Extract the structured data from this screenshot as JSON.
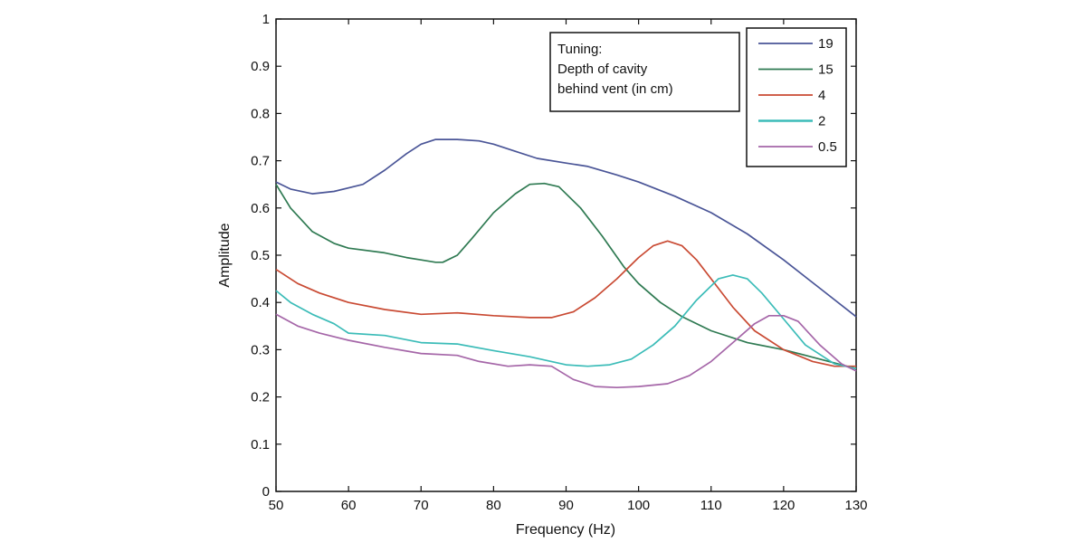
{
  "chart_data": {
    "type": "line",
    "title": "",
    "xlabel": "Frequency (Hz)",
    "ylabel": "Amplitude",
    "xlim": [
      50,
      130
    ],
    "ylim": [
      0,
      1
    ],
    "x_ticks": [
      50,
      60,
      70,
      80,
      90,
      100,
      110,
      120,
      130
    ],
    "y_ticks": [
      "0",
      "0.1",
      "0.2",
      "0.3",
      "0.4",
      "0.5",
      "0.6",
      "0.7",
      "0.8",
      "0.9",
      "1"
    ],
    "grid": false,
    "legend_placement": "top-right",
    "annotation": [
      "Tuning:",
      "Depth of cavity",
      "behind vent (in cm)"
    ],
    "series": [
      {
        "name": "19",
        "color": "#4a5597",
        "points": [
          [
            50,
            0.655
          ],
          [
            52,
            0.64
          ],
          [
            55,
            0.63
          ],
          [
            58,
            0.635
          ],
          [
            62,
            0.65
          ],
          [
            65,
            0.68
          ],
          [
            68,
            0.715
          ],
          [
            70,
            0.735
          ],
          [
            72,
            0.745
          ],
          [
            75,
            0.745
          ],
          [
            78,
            0.742
          ],
          [
            80,
            0.735
          ],
          [
            83,
            0.72
          ],
          [
            86,
            0.705
          ],
          [
            90,
            0.695
          ],
          [
            93,
            0.688
          ],
          [
            97,
            0.67
          ],
          [
            100,
            0.655
          ],
          [
            105,
            0.625
          ],
          [
            110,
            0.59
          ],
          [
            115,
            0.545
          ],
          [
            120,
            0.49
          ],
          [
            125,
            0.43
          ],
          [
            130,
            0.37
          ]
        ]
      },
      {
        "name": "15",
        "color": "#2f7a52",
        "points": [
          [
            50,
            0.65
          ],
          [
            52,
            0.6
          ],
          [
            55,
            0.55
          ],
          [
            58,
            0.525
          ],
          [
            60,
            0.515
          ],
          [
            65,
            0.505
          ],
          [
            68,
            0.495
          ],
          [
            70,
            0.49
          ],
          [
            72,
            0.485
          ],
          [
            73,
            0.485
          ],
          [
            75,
            0.5
          ],
          [
            77,
            0.535
          ],
          [
            80,
            0.59
          ],
          [
            83,
            0.63
          ],
          [
            85,
            0.65
          ],
          [
            87,
            0.652
          ],
          [
            89,
            0.645
          ],
          [
            92,
            0.6
          ],
          [
            95,
            0.54
          ],
          [
            98,
            0.475
          ],
          [
            100,
            0.44
          ],
          [
            103,
            0.4
          ],
          [
            106,
            0.37
          ],
          [
            110,
            0.34
          ],
          [
            115,
            0.315
          ],
          [
            120,
            0.3
          ],
          [
            125,
            0.28
          ],
          [
            130,
            0.26
          ]
        ]
      },
      {
        "name": "4",
        "color": "#c94a33",
        "points": [
          [
            50,
            0.47
          ],
          [
            53,
            0.44
          ],
          [
            56,
            0.42
          ],
          [
            60,
            0.4
          ],
          [
            65,
            0.385
          ],
          [
            70,
            0.375
          ],
          [
            75,
            0.378
          ],
          [
            80,
            0.372
          ],
          [
            85,
            0.368
          ],
          [
            88,
            0.368
          ],
          [
            91,
            0.38
          ],
          [
            94,
            0.41
          ],
          [
            97,
            0.45
          ],
          [
            100,
            0.495
          ],
          [
            102,
            0.52
          ],
          [
            104,
            0.53
          ],
          [
            106,
            0.52
          ],
          [
            108,
            0.49
          ],
          [
            110,
            0.45
          ],
          [
            113,
            0.39
          ],
          [
            116,
            0.34
          ],
          [
            120,
            0.3
          ],
          [
            124,
            0.275
          ],
          [
            127,
            0.265
          ],
          [
            130,
            0.265
          ]
        ]
      },
      {
        "name": "2",
        "color": "#3bbcb8",
        "points": [
          [
            50,
            0.425
          ],
          [
            52,
            0.4
          ],
          [
            55,
            0.375
          ],
          [
            58,
            0.355
          ],
          [
            60,
            0.335
          ],
          [
            65,
            0.33
          ],
          [
            70,
            0.315
          ],
          [
            75,
            0.312
          ],
          [
            80,
            0.298
          ],
          [
            85,
            0.285
          ],
          [
            90,
            0.268
          ],
          [
            93,
            0.265
          ],
          [
            96,
            0.268
          ],
          [
            99,
            0.28
          ],
          [
            102,
            0.31
          ],
          [
            105,
            0.35
          ],
          [
            108,
            0.405
          ],
          [
            111,
            0.45
          ],
          [
            113,
            0.458
          ],
          [
            115,
            0.45
          ],
          [
            117,
            0.42
          ],
          [
            120,
            0.365
          ],
          [
            123,
            0.31
          ],
          [
            127,
            0.27
          ],
          [
            130,
            0.26
          ]
        ]
      },
      {
        "name": "0.5",
        "color": "#a566a8",
        "points": [
          [
            50,
            0.375
          ],
          [
            53,
            0.35
          ],
          [
            56,
            0.335
          ],
          [
            60,
            0.32
          ],
          [
            65,
            0.305
          ],
          [
            70,
            0.292
          ],
          [
            75,
            0.288
          ],
          [
            78,
            0.275
          ],
          [
            82,
            0.265
          ],
          [
            85,
            0.268
          ],
          [
            88,
            0.265
          ],
          [
            91,
            0.237
          ],
          [
            94,
            0.222
          ],
          [
            97,
            0.22
          ],
          [
            100,
            0.222
          ],
          [
            104,
            0.228
          ],
          [
            107,
            0.245
          ],
          [
            110,
            0.275
          ],
          [
            113,
            0.315
          ],
          [
            116,
            0.355
          ],
          [
            118,
            0.372
          ],
          [
            120,
            0.372
          ],
          [
            122,
            0.36
          ],
          [
            125,
            0.31
          ],
          [
            128,
            0.27
          ],
          [
            130,
            0.255
          ]
        ]
      }
    ]
  }
}
